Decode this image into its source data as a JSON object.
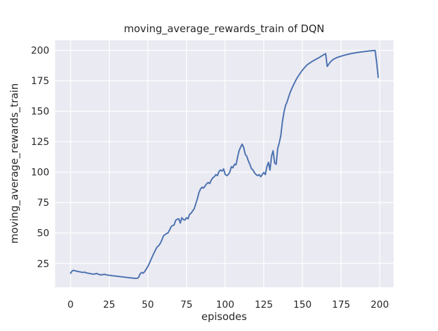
{
  "figure": {
    "background_color": "#ffffff"
  },
  "chart_data": {
    "type": "line",
    "title": "moving_average_rewards_train of DQN",
    "xlabel": "episodes",
    "ylabel": "moving_average_rewards_train",
    "x_ticks": [
      0,
      25,
      50,
      75,
      100,
      125,
      150,
      175,
      200
    ],
    "y_ticks": [
      25,
      50,
      75,
      100,
      125,
      150,
      175,
      200
    ],
    "xlim": [
      -10,
      208.9
    ],
    "ylim": [
      5.5,
      208.2
    ],
    "grid": true,
    "legend_position": "none",
    "style": {
      "plot_background": "#eaeaf2",
      "grid_color": "#ffffff",
      "line_color": "#4c72b0",
      "text_color": "#262626",
      "line_width": 2
    },
    "series": [
      {
        "name": "moving_average_rewards_train",
        "points": [
          [
            0,
            17.0
          ],
          [
            1,
            18.8
          ],
          [
            2,
            19.4
          ],
          [
            3,
            19.0
          ],
          [
            4,
            18.6
          ],
          [
            5,
            18.4
          ],
          [
            6,
            18.1
          ],
          [
            7,
            17.9
          ],
          [
            8,
            17.6
          ],
          [
            9,
            17.9
          ],
          [
            10,
            17.4
          ],
          [
            11,
            17.1
          ],
          [
            12,
            16.9
          ],
          [
            13,
            16.6
          ],
          [
            14,
            16.4
          ],
          [
            15,
            16.2
          ],
          [
            16,
            16.5
          ],
          [
            17,
            16.8
          ],
          [
            18,
            16.1
          ],
          [
            19,
            15.8
          ],
          [
            20,
            15.6
          ],
          [
            21,
            15.9
          ],
          [
            22,
            16.1
          ],
          [
            23,
            15.7
          ],
          [
            24,
            15.5
          ],
          [
            25,
            15.3
          ],
          [
            26,
            15.2
          ],
          [
            27,
            15.0
          ],
          [
            28,
            14.8
          ],
          [
            29,
            14.7
          ],
          [
            30,
            14.5
          ],
          [
            31,
            14.4
          ],
          [
            32,
            14.2
          ],
          [
            33,
            14.1
          ],
          [
            34,
            13.9
          ],
          [
            35,
            13.8
          ],
          [
            36,
            13.6
          ],
          [
            37,
            13.5
          ],
          [
            38,
            13.3
          ],
          [
            39,
            13.2
          ],
          [
            40,
            13.0
          ],
          [
            41,
            12.9
          ],
          [
            42,
            12.8
          ],
          [
            43,
            12.8
          ],
          [
            44,
            13.5
          ],
          [
            45,
            16.5
          ],
          [
            46,
            17.6
          ],
          [
            47,
            17.0
          ],
          [
            48,
            18.5
          ],
          [
            49,
            20.5
          ],
          [
            50,
            22.5
          ],
          [
            51,
            25.2
          ],
          [
            52,
            28.1
          ],
          [
            53,
            31.0
          ],
          [
            54,
            33.7
          ],
          [
            55,
            36.2
          ],
          [
            56,
            38.6
          ],
          [
            57,
            39.6
          ],
          [
            58,
            41.5
          ],
          [
            59,
            44.0
          ],
          [
            60,
            47.5
          ],
          [
            61,
            48.6
          ],
          [
            62,
            49.5
          ],
          [
            63,
            50.1
          ],
          [
            64,
            52.3
          ],
          [
            65,
            55.1
          ],
          [
            66,
            56.2
          ],
          [
            67,
            56.6
          ],
          [
            68,
            60.5
          ],
          [
            69,
            61.3
          ],
          [
            70,
            61.7
          ],
          [
            71,
            58.2
          ],
          [
            72,
            62.6
          ],
          [
            73,
            61.0
          ],
          [
            74,
            60.7
          ],
          [
            75,
            62.6
          ],
          [
            76,
            61.7
          ],
          [
            77,
            65.4
          ],
          [
            78,
            66.3
          ],
          [
            79,
            68.2
          ],
          [
            80,
            70.0
          ],
          [
            81,
            74.0
          ],
          [
            82,
            78.0
          ],
          [
            83,
            83.0
          ],
          [
            84,
            86.0
          ],
          [
            85,
            87.6
          ],
          [
            86,
            86.9
          ],
          [
            87,
            88.6
          ],
          [
            88,
            90.4
          ],
          [
            89,
            91.5
          ],
          [
            90,
            90.6
          ],
          [
            91,
            93.4
          ],
          [
            92,
            95.3
          ],
          [
            93,
            96.2
          ],
          [
            94,
            98.0
          ],
          [
            95,
            97.1
          ],
          [
            96,
            100.5
          ],
          [
            97,
            101.8
          ],
          [
            98,
            100.8
          ],
          [
            99,
            102.7
          ],
          [
            100,
            98.2
          ],
          [
            101,
            97.1
          ],
          [
            102,
            98.0
          ],
          [
            103,
            100.0
          ],
          [
            104,
            104.5
          ],
          [
            105,
            103.6
          ],
          [
            106,
            106.4
          ],
          [
            107,
            106.0
          ],
          [
            108,
            112.0
          ],
          [
            109,
            117.5
          ],
          [
            110,
            120.5
          ],
          [
            111,
            123.0
          ],
          [
            112,
            120.2
          ],
          [
            113,
            114.6
          ],
          [
            114,
            113.0
          ],
          [
            115,
            109.2
          ],
          [
            116,
            106.4
          ],
          [
            117,
            102.9
          ],
          [
            118,
            101.8
          ],
          [
            119,
            99.5
          ],
          [
            120,
            98.0
          ],
          [
            121,
            97.1
          ],
          [
            122,
            98.0
          ],
          [
            123,
            96.2
          ],
          [
            124,
            98.0
          ],
          [
            125,
            99.7
          ],
          [
            126,
            98.0
          ],
          [
            127,
            104.6
          ],
          [
            128,
            108.1
          ],
          [
            129,
            101.6
          ],
          [
            130,
            113.0
          ],
          [
            131,
            117.6
          ],
          [
            132,
            107.6
          ],
          [
            133,
            106.4
          ],
          [
            134,
            119.5
          ],
          [
            135,
            124.1
          ],
          [
            136,
            130.0
          ],
          [
            137,
            141.0
          ],
          [
            138,
            149.0
          ],
          [
            139,
            154.5
          ],
          [
            140,
            157.5
          ],
          [
            141,
            161.5
          ],
          [
            142,
            165.2
          ],
          [
            143,
            168.3
          ],
          [
            144,
            171.0
          ],
          [
            145,
            173.6
          ],
          [
            146,
            176.1
          ],
          [
            147,
            178.3
          ],
          [
            148,
            180.2
          ],
          [
            149,
            182.0
          ],
          [
            150,
            183.8
          ],
          [
            151,
            185.3
          ],
          [
            152,
            186.7
          ],
          [
            153,
            188.0
          ],
          [
            154,
            189.0
          ],
          [
            155,
            189.8
          ],
          [
            156,
            190.7
          ],
          [
            157,
            191.4
          ],
          [
            158,
            192.1
          ],
          [
            159,
            192.8
          ],
          [
            160,
            193.5
          ],
          [
            161,
            194.2
          ],
          [
            162,
            195.0
          ],
          [
            163,
            195.8
          ],
          [
            164,
            196.6
          ],
          [
            165,
            197.3
          ],
          [
            166,
            186.8
          ],
          [
            167,
            188.6
          ],
          [
            168,
            190.4
          ],
          [
            169,
            191.6
          ],
          [
            170,
            192.6
          ],
          [
            171,
            193.3
          ],
          [
            172,
            193.9
          ],
          [
            173,
            194.4
          ],
          [
            174,
            194.8
          ],
          [
            175,
            195.2
          ],
          [
            176,
            195.6
          ],
          [
            177,
            195.9
          ],
          [
            178,
            196.3
          ],
          [
            179,
            196.6
          ],
          [
            180,
            196.9
          ],
          [
            181,
            197.2
          ],
          [
            182,
            197.5
          ],
          [
            183,
            197.7
          ],
          [
            184,
            197.9
          ],
          [
            185,
            198.1
          ],
          [
            186,
            198.3
          ],
          [
            187,
            198.5
          ],
          [
            188,
            198.7
          ],
          [
            189,
            198.8
          ],
          [
            190,
            199.0
          ],
          [
            191,
            199.2
          ],
          [
            192,
            199.3
          ],
          [
            193,
            199.5
          ],
          [
            194,
            199.6
          ],
          [
            195,
            199.7
          ],
          [
            196,
            199.8
          ],
          [
            197,
            199.9
          ],
          [
            198,
            190.0
          ],
          [
            199,
            177.8
          ]
        ]
      }
    ]
  }
}
